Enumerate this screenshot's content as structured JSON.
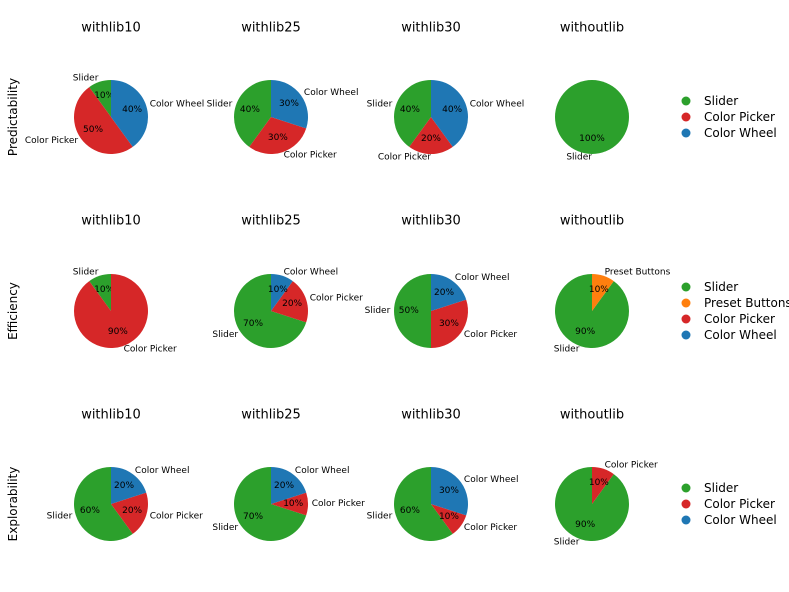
{
  "colors": {
    "Slider": "#2ca02c",
    "Color Picker": "#d62728",
    "Color Wheel": "#1f77b4",
    "Preset Buttons": "#ff7f0e"
  },
  "rows": [
    {
      "label": "Predictability",
      "legend": [
        "Slider",
        "Color Picker",
        "Color Wheel"
      ]
    },
    {
      "label": "Efficiency",
      "legend": [
        "Slider",
        "Preset Buttons",
        "Color Picker",
        "Color Wheel"
      ]
    },
    {
      "label": "Explorability",
      "legend": [
        "Slider",
        "Color Picker",
        "Color Wheel"
      ]
    }
  ],
  "chart_data": [
    {
      "type": "pie",
      "row": 0,
      "col": 0,
      "title": "withlib10",
      "categories": [
        "Slider",
        "Color Picker",
        "Color Wheel"
      ],
      "values": [
        10,
        50,
        40
      ],
      "labels": [
        "10%",
        "50%",
        "40%"
      ]
    },
    {
      "type": "pie",
      "row": 0,
      "col": 1,
      "title": "withlib25",
      "categories": [
        "Slider",
        "Color Picker",
        "Color Wheel"
      ],
      "values": [
        40,
        30,
        30
      ],
      "labels": [
        "40%",
        "30%",
        "30%"
      ]
    },
    {
      "type": "pie",
      "row": 0,
      "col": 2,
      "title": "withlib30",
      "categories": [
        "Slider",
        "Color Picker",
        "Color Wheel"
      ],
      "values": [
        40,
        20,
        40
      ],
      "labels": [
        "40%",
        "20%",
        "40%"
      ]
    },
    {
      "type": "pie",
      "row": 0,
      "col": 3,
      "title": "withoutlib",
      "categories": [
        "Slider"
      ],
      "values": [
        100
      ],
      "labels": [
        "100%"
      ]
    },
    {
      "type": "pie",
      "row": 1,
      "col": 0,
      "title": "withlib10",
      "categories": [
        "Slider",
        "Color Picker"
      ],
      "values": [
        10,
        90
      ],
      "labels": [
        "10%",
        "90%"
      ]
    },
    {
      "type": "pie",
      "row": 1,
      "col": 1,
      "title": "withlib25",
      "categories": [
        "Slider",
        "Color Picker",
        "Color Wheel"
      ],
      "values": [
        70,
        20,
        10
      ],
      "labels": [
        "70%",
        "20%",
        "10%"
      ]
    },
    {
      "type": "pie",
      "row": 1,
      "col": 2,
      "title": "withlib30",
      "categories": [
        "Slider",
        "Color Picker",
        "Color Wheel"
      ],
      "values": [
        50,
        30,
        20
      ],
      "labels": [
        "50%",
        "30%",
        "20%"
      ]
    },
    {
      "type": "pie",
      "row": 1,
      "col": 3,
      "title": "withoutlib",
      "categories": [
        "Slider",
        "Preset Buttons"
      ],
      "values": [
        90,
        10
      ],
      "labels": [
        "90%",
        "10%"
      ]
    },
    {
      "type": "pie",
      "row": 2,
      "col": 0,
      "title": "withlib10",
      "categories": [
        "Slider",
        "Color Picker",
        "Color Wheel"
      ],
      "values": [
        60,
        20,
        20
      ],
      "labels": [
        "60%",
        "20%",
        "20%"
      ]
    },
    {
      "type": "pie",
      "row": 2,
      "col": 1,
      "title": "withlib25",
      "categories": [
        "Slider",
        "Color Picker",
        "Color Wheel"
      ],
      "values": [
        70,
        10,
        20
      ],
      "labels": [
        "70%",
        "10%",
        "20%"
      ]
    },
    {
      "type": "pie",
      "row": 2,
      "col": 2,
      "title": "withlib30",
      "categories": [
        "Slider",
        "Color Picker",
        "Color Wheel"
      ],
      "values": [
        60,
        10,
        30
      ],
      "labels": [
        "60%",
        "10%",
        "30%"
      ]
    },
    {
      "type": "pie",
      "row": 2,
      "col": 3,
      "title": "withoutlib",
      "categories": [
        "Slider",
        "Color Picker"
      ],
      "values": [
        90,
        10
      ],
      "labels": [
        "90%",
        "10%"
      ]
    }
  ]
}
